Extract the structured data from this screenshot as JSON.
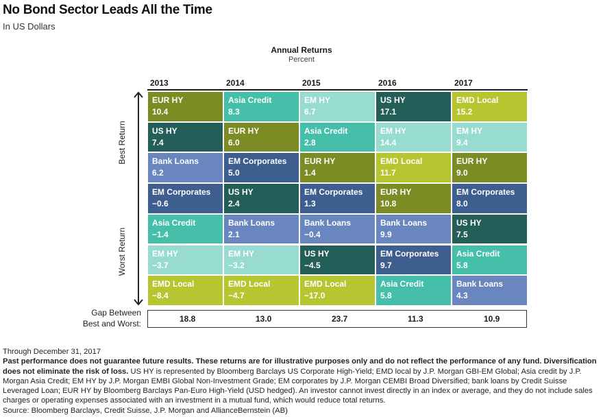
{
  "header": {
    "title": "No Bond Sector Leads All the Time",
    "subtitle": "In US Dollars"
  },
  "chart_data": {
    "type": "table",
    "title": "Annual Returns",
    "subtitle": "Percent",
    "axis_top_label": "Best Return",
    "axis_bottom_label": "Worst Return",
    "gap_label_line1": "Gap Between",
    "gap_label_line2": "Best and Worst:",
    "years": [
      "2013",
      "2014",
      "2015",
      "2016",
      "2017"
    ],
    "sector_colors": {
      "EUR HY": "#7c8c24",
      "Asia Credit": "#46bfaa",
      "EM HY": "#98dbd0",
      "US HY": "#245e58",
      "EMD Local": "#b7c630",
      "EM Corporates": "#3e5e90",
      "Bank Loans": "#6a86be"
    },
    "columns": [
      {
        "year": "2013",
        "gap": "18.8",
        "entries": [
          {
            "sector": "EUR HY",
            "value": "10.4"
          },
          {
            "sector": "US HY",
            "value": "7.4"
          },
          {
            "sector": "Bank Loans",
            "value": "6.2"
          },
          {
            "sector": "EM Corporates",
            "value": "−0.6"
          },
          {
            "sector": "Asia Credit",
            "value": "−1.4"
          },
          {
            "sector": "EM HY",
            "value": "−3.7"
          },
          {
            "sector": "EMD Local",
            "value": "−8.4"
          }
        ]
      },
      {
        "year": "2014",
        "gap": "13.0",
        "entries": [
          {
            "sector": "Asia Credit",
            "value": "8.3"
          },
          {
            "sector": "EUR HY",
            "value": "6.0"
          },
          {
            "sector": "EM Corporates",
            "value": "5.0"
          },
          {
            "sector": "US HY",
            "value": "2.4"
          },
          {
            "sector": "Bank Loans",
            "value": "2.1"
          },
          {
            "sector": "EM HY",
            "value": "−3.2"
          },
          {
            "sector": "EMD Local",
            "value": "−4.7"
          }
        ]
      },
      {
        "year": "2015",
        "gap": "23.7",
        "entries": [
          {
            "sector": "EM HY",
            "value": "6.7"
          },
          {
            "sector": "Asia Credit",
            "value": "2.8"
          },
          {
            "sector": "EUR HY",
            "value": "1.4"
          },
          {
            "sector": "EM Corporates",
            "value": "1.3"
          },
          {
            "sector": "Bank Loans",
            "value": "−0.4"
          },
          {
            "sector": "US HY",
            "value": "−4.5"
          },
          {
            "sector": "EMD Local",
            "value": "−17.0"
          }
        ]
      },
      {
        "year": "2016",
        "gap": "11.3",
        "entries": [
          {
            "sector": "US HY",
            "value": "17.1"
          },
          {
            "sector": "EM HY",
            "value": "14.4"
          },
          {
            "sector": "EMD Local",
            "value": "11.7"
          },
          {
            "sector": "EUR HY",
            "value": "10.8"
          },
          {
            "sector": "Bank Loans",
            "value": "9.9"
          },
          {
            "sector": "EM Corporates",
            "value": "9.7"
          },
          {
            "sector": "Asia Credit",
            "value": "5.8"
          }
        ]
      },
      {
        "year": "2017",
        "gap": "10.9",
        "entries": [
          {
            "sector": "EMD Local",
            "value": "15.2"
          },
          {
            "sector": "EM HY",
            "value": "9.4"
          },
          {
            "sector": "EUR HY",
            "value": "9.0"
          },
          {
            "sector": "EM Corporates",
            "value": "8.0"
          },
          {
            "sector": "US HY",
            "value": "7.5"
          },
          {
            "sector": "Asia Credit",
            "value": "5.8"
          },
          {
            "sector": "Bank Loans",
            "value": "4.3"
          }
        ]
      }
    ]
  },
  "footnotes": {
    "date_line": "Through December 31, 2017",
    "disclaimer_bold": "Past performance does not guarantee future results. These returns are for illustrative purposes only and do not reflect the performance of any fund. Diversification does not eliminate the risk of loss.",
    "disclaimer_text": " US HY is represented by Bloomberg Barclays US Corporate High-Yield; EMD local by J.P. Morgan GBI-EM Global; Asia credit by J.P. Morgan Asia Credit; EM HY by J.P. Morgan EMBI Global Non-Investment Grade; EM corporates by J.P. Morgan CEMBI Broad Diversified; bank loans by Credit Suisse Leveraged Loan; EUR HY by Bloomberg Barclays Pan-Euro High-Yield (USD hedged). An investor cannot invest directly in an index or average, and they do not include sales charges or operating expenses associated with an investment in a mutual fund, which would reduce total returns.",
    "source": "Source: Bloomberg Barclays, Credit Suisse, J.P. Morgan and AllianceBernstein (AB)"
  }
}
